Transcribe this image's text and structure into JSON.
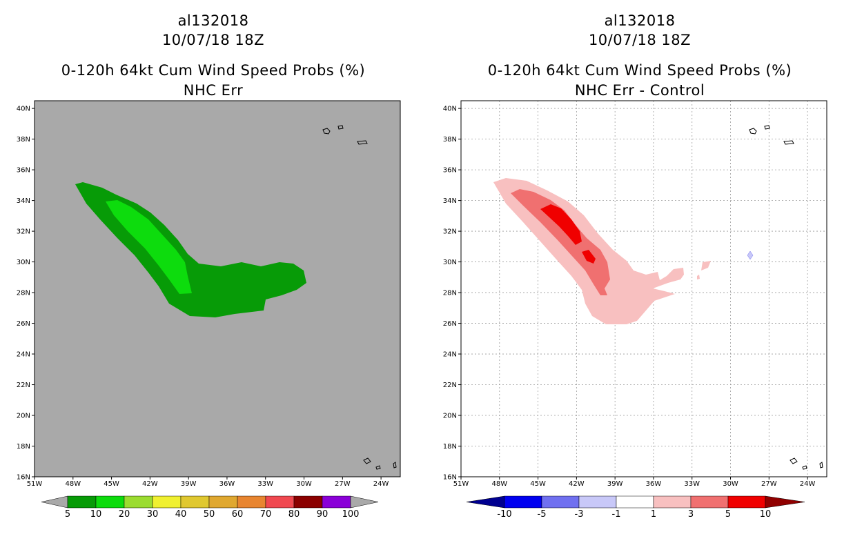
{
  "panels": {
    "left": {
      "title_line1": "al132018",
      "title_line2": "10/07/18 18Z",
      "title_line3": "0-120h 64kt Cum Wind Speed Probs (%)",
      "title_line4": "NHC Err",
      "background_color": "#a9a9a9",
      "colorbar": {
        "labels": [
          "5",
          "10",
          "20",
          "30",
          "40",
          "50",
          "60",
          "70",
          "80",
          "90",
          "100"
        ],
        "colors": [
          "#079b07",
          "#0ddc0d",
          "#9bdc30",
          "#f0f030",
          "#e0c830",
          "#e0a830",
          "#e88530",
          "#f04850",
          "#8b0000",
          "#8a00d8"
        ],
        "end_color": "#a9a9a9"
      }
    },
    "right": {
      "title_line1": "al132018",
      "title_line2": "10/07/18 18Z",
      "title_line3": "0-120h 64kt Cum Wind Speed Probs (%)",
      "title_line4": "NHC Err - Control",
      "background_color": "#ffffff",
      "colorbar": {
        "labels": [
          "-10",
          "-5",
          "-3",
          "-1",
          "1",
          "3",
          "5",
          "10"
        ],
        "colors": [
          "#0000f0",
          "#7070f0",
          "#c8c8f8",
          "#ffffff",
          "#f8c0c0",
          "#f07070",
          "#f00000"
        ],
        "left_end_color": "#000090",
        "right_end_color": "#900000"
      }
    }
  },
  "map": {
    "lat_labels": [
      "40N",
      "38N",
      "36N",
      "34N",
      "32N",
      "30N",
      "28N",
      "26N",
      "24N",
      "22N",
      "20N",
      "18N",
      "16N"
    ],
    "lon_labels": [
      "51W",
      "48W",
      "45W",
      "42W",
      "39W",
      "36W",
      "33W",
      "30W",
      "27W",
      "24W"
    ],
    "lat_range": [
      16,
      40.5
    ],
    "lon_range": [
      -51,
      -22.5
    ]
  }
}
